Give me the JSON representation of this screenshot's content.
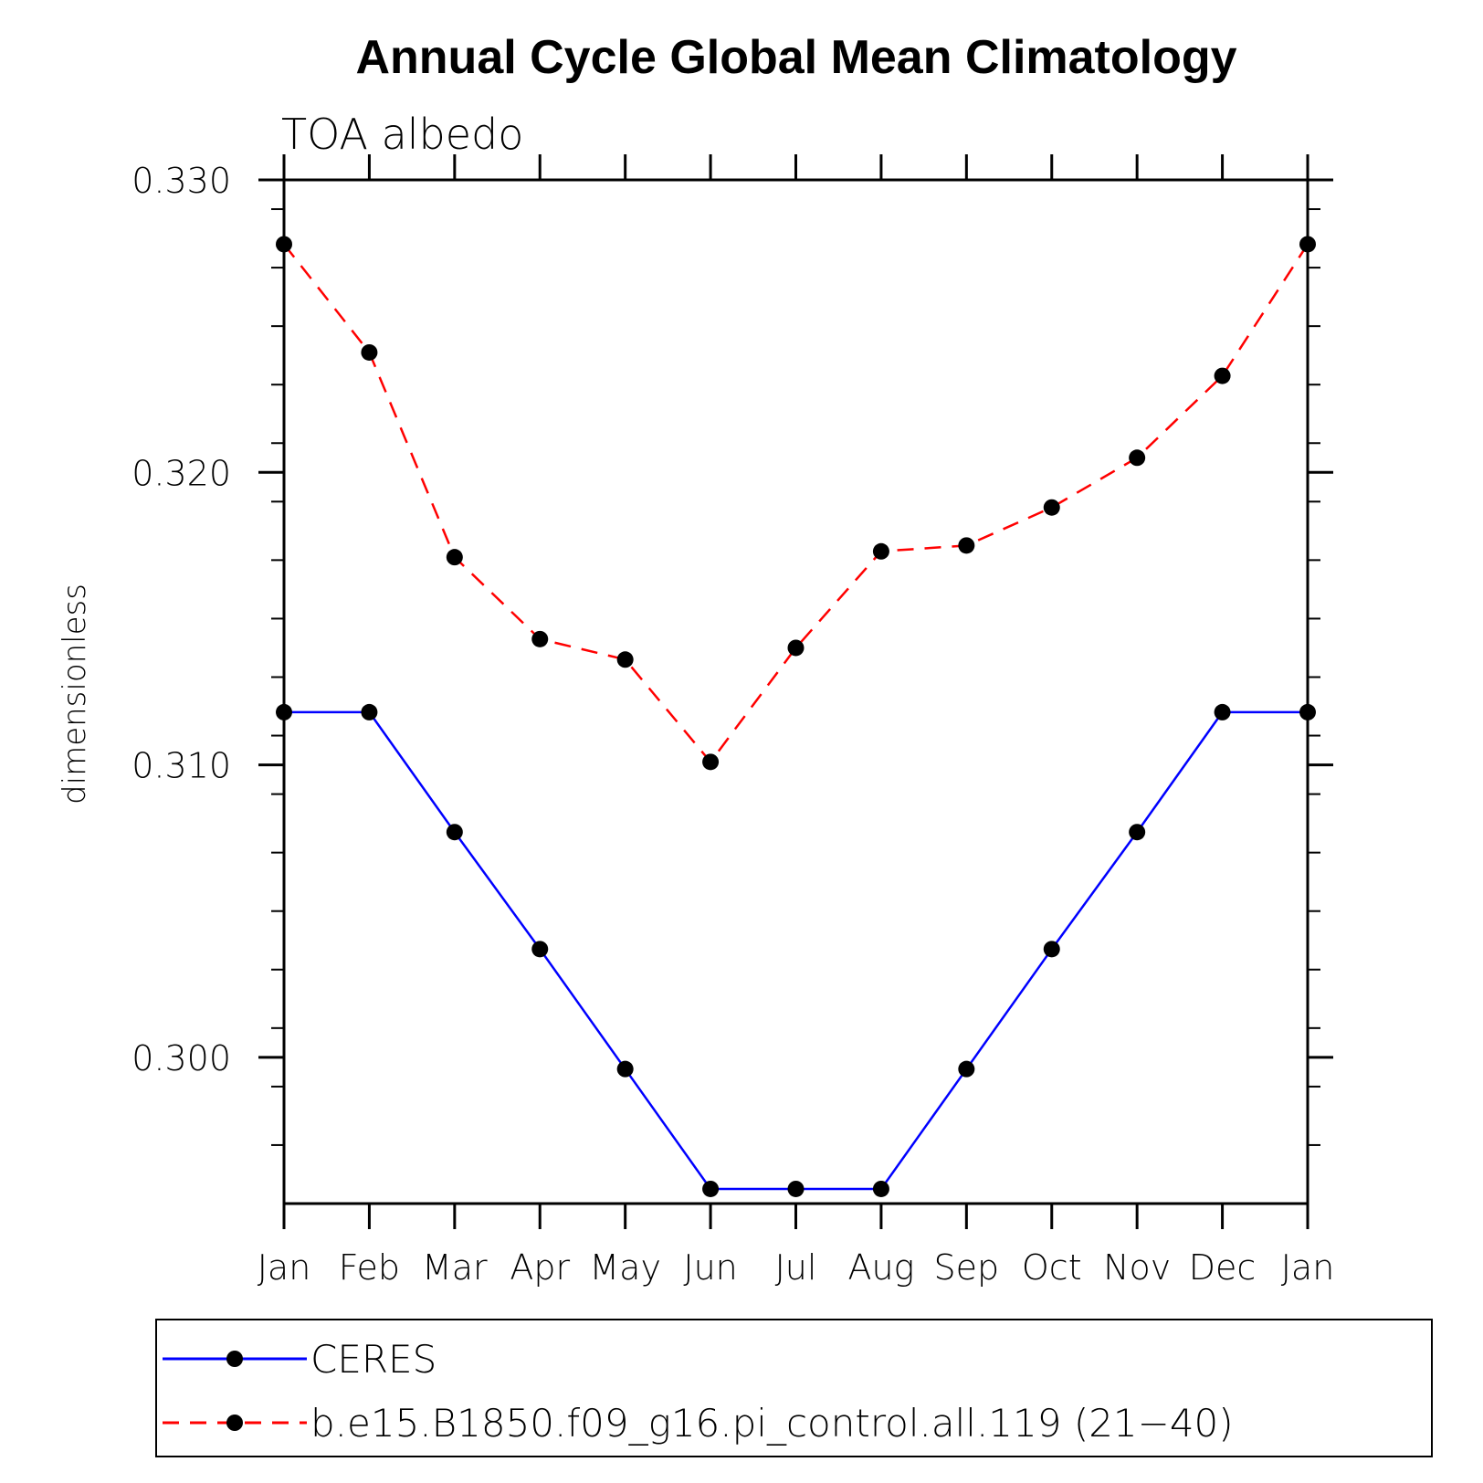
{
  "chart_data": {
    "type": "line",
    "title": "Annual Cycle Global Mean Climatology",
    "subtitle": "TOA albedo",
    "ylabel": "dimensionless",
    "xlabel": "",
    "categories": [
      "Jan",
      "Feb",
      "Mar",
      "Apr",
      "May",
      "Jun",
      "Jul",
      "Aug",
      "Sep",
      "Oct",
      "Nov",
      "Dec",
      "Jan"
    ],
    "ylim": [
      0.295,
      0.33
    ],
    "yticks_major": [
      0.3,
      0.31,
      0.32,
      0.33
    ],
    "ytick_labels": [
      "0.300",
      "0.310",
      "0.320",
      "0.330"
    ],
    "yticks_minor_step": 0.002,
    "grid": false,
    "legend_placement": "bottom",
    "series": [
      {
        "name": "CERES",
        "color": "#0000ff",
        "dash": "solid",
        "marker": "filled-circle",
        "values": [
          0.3118,
          0.3118,
          0.3077,
          0.3037,
          0.2996,
          0.2955,
          0.2955,
          0.2955,
          0.2996,
          0.3037,
          0.3077,
          0.3118,
          0.3118
        ]
      },
      {
        "name": "b.e15.B1850.f09_g16.pi_control.all.119 (21−40)",
        "color": "#ff0000",
        "dash": "dashed",
        "marker": "filled-circle",
        "values": [
          0.3278,
          0.3241,
          0.3171,
          0.3143,
          0.3136,
          0.3101,
          0.314,
          0.3173,
          0.3175,
          0.3188,
          0.3205,
          0.3233,
          0.3278
        ]
      }
    ]
  }
}
